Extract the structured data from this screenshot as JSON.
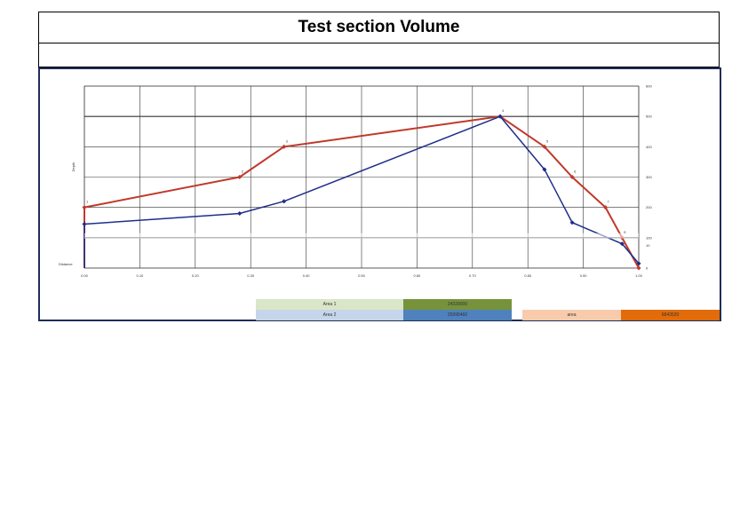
{
  "title": "Test section Volume",
  "chart_data": {
    "type": "line",
    "x_ticks": [
      "0.00",
      "0.10",
      "0.20",
      "0.30",
      "0.40",
      "0.50",
      "0.60",
      "0.70",
      "0.80",
      "0.90",
      "1.00"
    ],
    "xlim": [
      0,
      1
    ],
    "ylabel": "Depth",
    "left_axis_label": "Distance",
    "ylim": [
      0,
      600
    ],
    "right_ticks": [
      "600",
      "500",
      "400",
      "300",
      "200",
      "100",
      "10",
      "0"
    ],
    "grid": true,
    "series": [
      {
        "color": "#c0392b",
        "points": [
          [
            0.0,
            0
          ],
          [
            0.0,
            200
          ],
          [
            0.28,
            300
          ],
          [
            0.36,
            400
          ],
          [
            0.75,
            500
          ],
          [
            0.83,
            400
          ],
          [
            0.88,
            300
          ],
          [
            0.94,
            200
          ],
          [
            0.97,
            100
          ],
          [
            1.0,
            0
          ]
        ],
        "point_labels": [
          "",
          "1",
          "2",
          "3",
          "4",
          "5",
          "6",
          "7",
          "8",
          ""
        ]
      },
      {
        "color": "#1f2d8a",
        "points": [
          [
            0.0,
            0
          ],
          [
            0.0,
            145
          ],
          [
            0.28,
            180
          ],
          [
            0.36,
            220
          ],
          [
            0.75,
            500
          ],
          [
            0.83,
            325
          ],
          [
            0.88,
            150
          ],
          [
            0.97,
            80
          ],
          [
            1.0,
            15
          ]
        ]
      }
    ]
  },
  "legend_table": {
    "row1": {
      "label": "Area 1",
      "value": "24329000",
      "label_color": "#d9e6c8",
      "value_color": "#76933c"
    },
    "row2": {
      "label": "Area 2",
      "value": "25995460",
      "label_color": "#c5d5ea",
      "value_color": "#4f81bd"
    },
    "row3": {
      "label": "area",
      "value": "6843520",
      "label_color": "#f8cbad",
      "value_color": "#e26b0a"
    }
  }
}
